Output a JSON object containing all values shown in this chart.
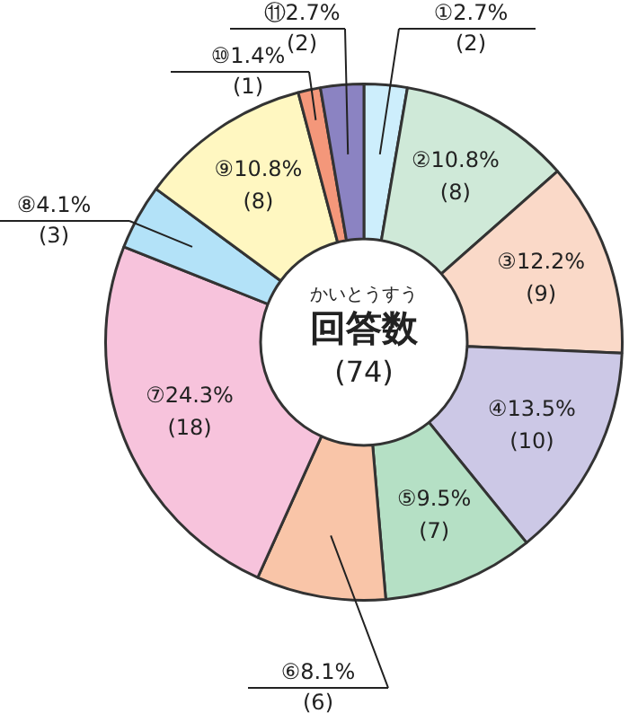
{
  "chart_data": {
    "type": "donut",
    "categories": [
      "①",
      "②",
      "③",
      "④",
      "⑤",
      "⑥",
      "⑦",
      "⑧",
      "⑨",
      "⑩",
      "⑪"
    ],
    "values": [
      2.7,
      10.8,
      12.2,
      13.5,
      9.5,
      8.1,
      24.3,
      4.1,
      10.8,
      1.4,
      2.7
    ],
    "value_labels": [
      "2.7%\n(2)",
      "10.8%\n(8)",
      "12.2%\n(9)",
      "13.5%\n(10)",
      "9.5%\n(7)",
      "8.1%\n(6)",
      "24.3%\n(18)",
      "4.1%\n(3)",
      "10.8%\n(8)",
      "1.4%\n(1)",
      "2.7%\n(2)"
    ],
    "colors": [
      "#cdeefc",
      "#cfe9d8",
      "#fad9c8",
      "#ccc8e6",
      "#b5e0c5",
      "#f9c5a8",
      "#f7c3dc",
      "#b3e2f8",
      "#fff7c1",
      "#f4977a",
      "#8b83c2"
    ],
    "annotations": [
      "かいとうすう",
      "回答数",
      "(74)"
    ],
    "legend": false
  }
}
